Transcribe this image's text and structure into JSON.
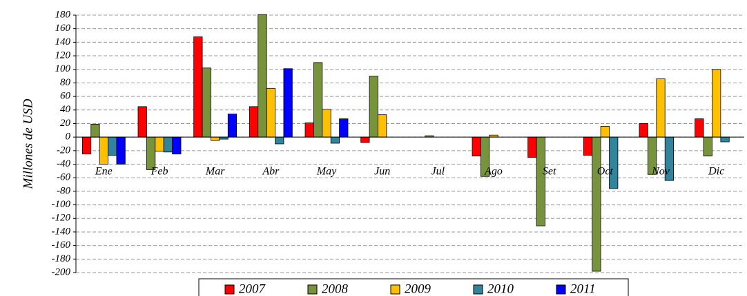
{
  "chart_data": {
    "type": "bar",
    "y_label": "Millones de USD",
    "categories": [
      "Ene",
      "Feb",
      "Mar",
      "Abr",
      "May",
      "Jun",
      "Jul",
      "Ago",
      "Set",
      "Oct",
      "Nov",
      "Dic"
    ],
    "series": [
      {
        "name": "2007",
        "color": "#ff0000",
        "values": [
          -25,
          45,
          148,
          45,
          21,
          -8,
          null,
          -28,
          -30,
          -27,
          20,
          27
        ]
      },
      {
        "name": "2008",
        "color": "#77933c",
        "values": [
          19,
          -48,
          102,
          181,
          110,
          90,
          2,
          -58,
          -131,
          -198,
          -55,
          -28
        ]
      },
      {
        "name": "2009",
        "color": "#ffc000",
        "values": [
          -40,
          -21,
          -5,
          72,
          41,
          33,
          null,
          3,
          null,
          16,
          86,
          100
        ]
      },
      {
        "name": "2010",
        "color": "#31849b",
        "values": [
          -27,
          -22,
          -3,
          -10,
          -9,
          null,
          null,
          null,
          null,
          -76,
          -64,
          -7
        ]
      },
      {
        "name": "2011",
        "color": "#0000ff",
        "values": [
          -40,
          -25,
          34,
          101,
          27,
          null,
          null,
          null,
          null,
          null,
          null,
          null
        ]
      }
    ],
    "ylim": [
      -200,
      180
    ],
    "yticks": [
      -200,
      -180,
      -160,
      -140,
      -120,
      -100,
      -80,
      -60,
      -40,
      -20,
      0,
      20,
      40,
      60,
      80,
      100,
      120,
      140,
      160,
      180
    ],
    "grid": true
  }
}
